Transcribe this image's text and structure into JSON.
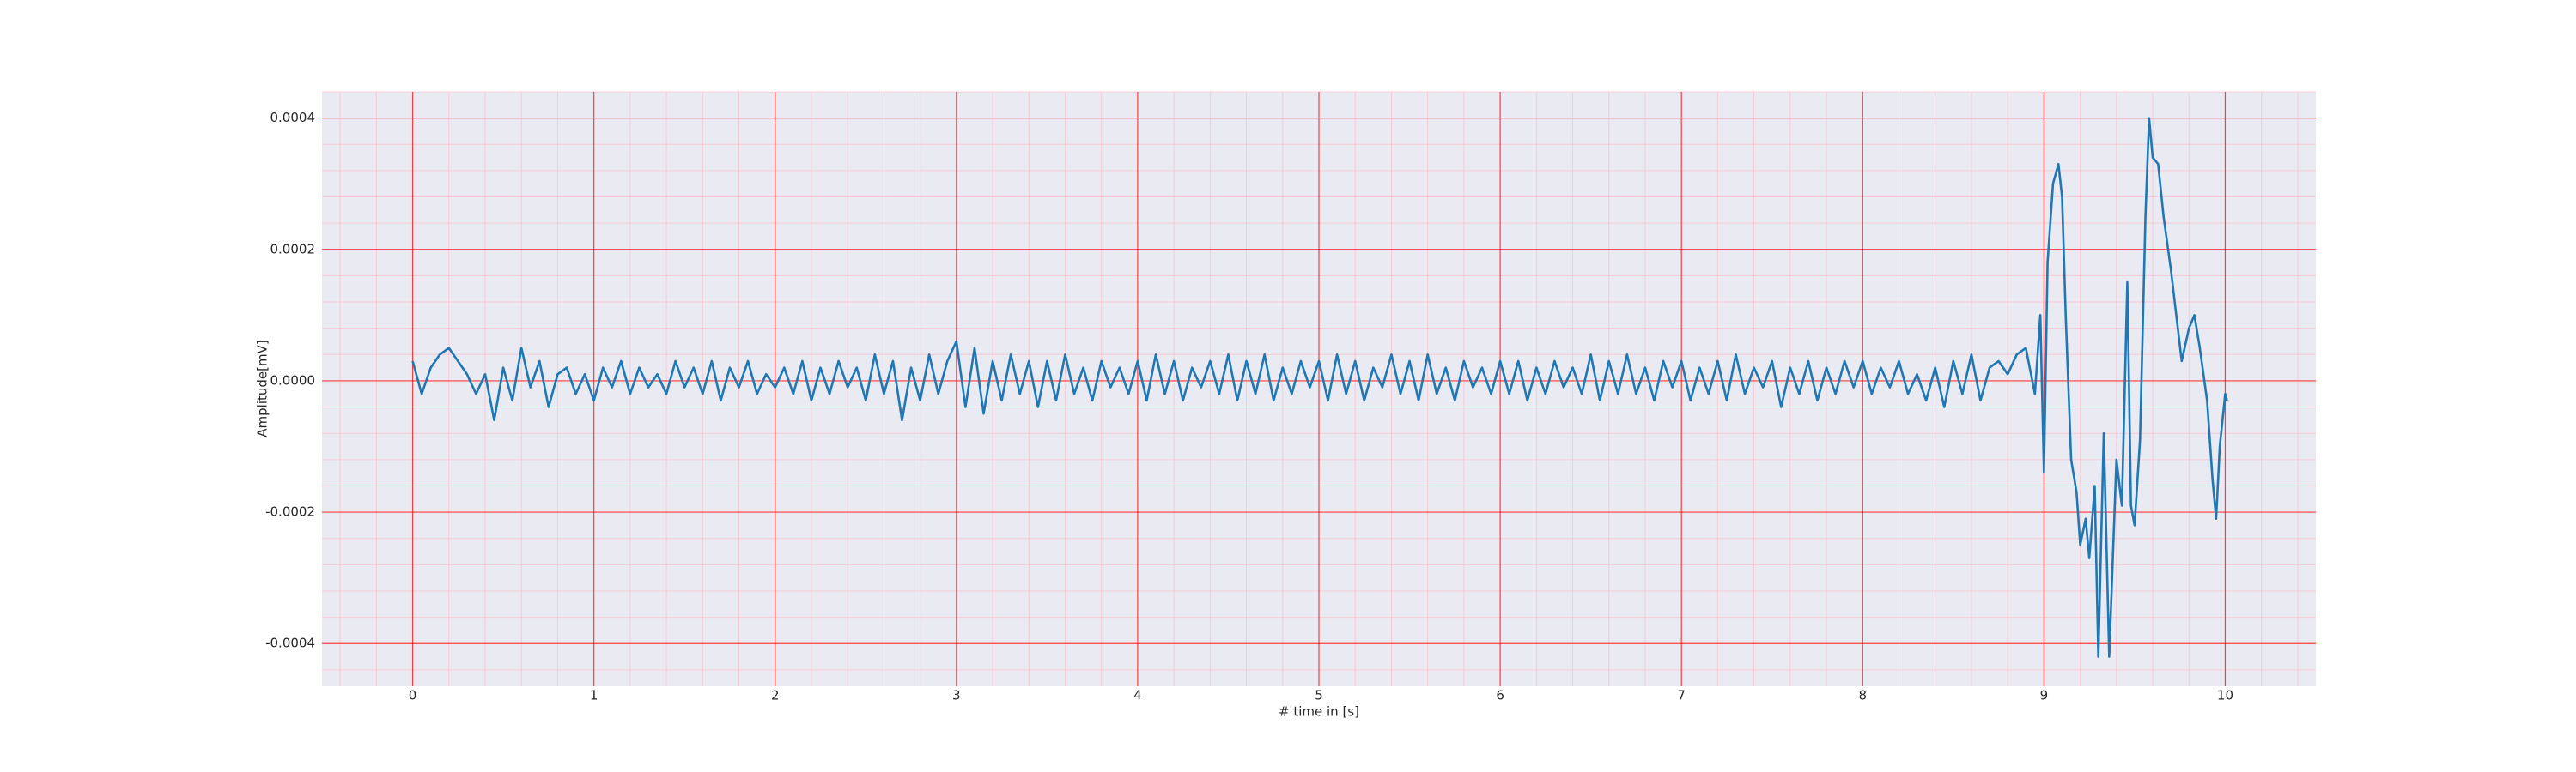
{
  "chart_data": {
    "type": "line",
    "xlabel": "# time in [s]",
    "ylabel": "Amplitude[mV]",
    "xlim": [
      -0.5,
      10.5
    ],
    "xticks": [
      0,
      1,
      2,
      3,
      4,
      5,
      6,
      7,
      8,
      9,
      10
    ],
    "ylim": [
      -0.000465,
      0.00044
    ],
    "yticks": [
      -0.0004,
      -0.0002,
      {
        "value": 0,
        "label": "0.0000"
      },
      0.0002,
      0.0004
    ],
    "grid": true,
    "minor_grid": true,
    "background": "#eaeaf2",
    "grid_color": "#ff0000",
    "minor_grid_color": "#ffb6c1",
    "x": [
      0,
      0.05,
      0.1,
      0.15,
      0.2,
      0.25,
      0.3,
      0.35,
      0.4,
      0.45,
      0.5,
      0.55,
      0.6,
      0.65,
      0.7,
      0.75,
      0.8,
      0.85,
      0.9,
      0.95,
      1,
      1.05,
      1.1,
      1.15,
      1.2,
      1.25,
      1.3,
      1.35,
      1.4,
      1.45,
      1.5,
      1.55,
      1.6,
      1.65,
      1.7,
      1.75,
      1.8,
      1.85,
      1.9,
      1.95,
      2,
      2.05,
      2.1,
      2.15,
      2.2,
      2.25,
      2.3,
      2.35,
      2.4,
      2.45,
      2.5,
      2.55,
      2.6,
      2.65,
      2.7,
      2.75,
      2.8,
      2.85,
      2.9,
      2.95,
      3,
      3.05,
      3.1,
      3.15,
      3.2,
      3.25,
      3.3,
      3.35,
      3.4,
      3.45,
      3.5,
      3.55,
      3.6,
      3.65,
      3.7,
      3.75,
      3.8,
      3.85,
      3.9,
      3.95,
      4,
      4.05,
      4.1,
      4.15,
      4.2,
      4.25,
      4.3,
      4.35,
      4.4,
      4.45,
      4.5,
      4.55,
      4.6,
      4.65,
      4.7,
      4.75,
      4.8,
      4.85,
      4.9,
      4.95,
      5,
      5.05,
      5.1,
      5.15,
      5.2,
      5.25,
      5.3,
      5.35,
      5.4,
      5.45,
      5.5,
      5.55,
      5.6,
      5.65,
      5.7,
      5.75,
      5.8,
      5.85,
      5.9,
      5.95,
      6,
      6.05,
      6.1,
      6.15,
      6.2,
      6.25,
      6.3,
      6.35,
      6.4,
      6.45,
      6.5,
      6.55,
      6.6,
      6.65,
      6.7,
      6.75,
      6.8,
      6.85,
      6.9,
      6.95,
      7,
      7.05,
      7.1,
      7.15,
      7.2,
      7.25,
      7.3,
      7.35,
      7.4,
      7.45,
      7.5,
      7.55,
      7.6,
      7.65,
      7.7,
      7.75,
      7.8,
      7.85,
      7.9,
      7.95,
      8,
      8.05,
      8.1,
      8.15,
      8.2,
      8.25,
      8.3,
      8.35,
      8.4,
      8.45,
      8.5,
      8.55,
      8.6,
      8.65,
      8.7,
      8.75,
      8.8,
      8.85,
      8.9,
      8.95,
      8.98,
      9,
      9.02,
      9.05,
      9.08,
      9.1,
      9.12,
      9.15,
      9.18,
      9.2,
      9.23,
      9.25,
      9.28,
      9.3,
      9.33,
      9.36,
      9.4,
      9.43,
      9.46,
      9.48,
      9.5,
      9.53,
      9.56,
      9.58,
      9.6,
      9.63,
      9.66,
      9.7,
      9.73,
      9.76,
      9.8,
      9.83,
      9.86,
      9.9,
      9.93,
      9.95,
      9.97,
      10,
      10.01
    ],
    "series": [
      {
        "color": "#1f77b4",
        "values": [
          3e-05,
          -2e-05,
          2e-05,
          4e-05,
          5e-05,
          3e-05,
          1e-05,
          -2e-05,
          1e-05,
          -6e-05,
          2e-05,
          -3e-05,
          5e-05,
          -1e-05,
          3e-05,
          -4e-05,
          1e-05,
          2e-05,
          -2e-05,
          1e-05,
          -3e-05,
          2e-05,
          -1e-05,
          3e-05,
          -2e-05,
          2e-05,
          -1e-05,
          1e-05,
          -2e-05,
          3e-05,
          -1e-05,
          2e-05,
          -2e-05,
          3e-05,
          -3e-05,
          2e-05,
          -1e-05,
          3e-05,
          -2e-05,
          1e-05,
          -1e-05,
          2e-05,
          -2e-05,
          3e-05,
          -3e-05,
          2e-05,
          -2e-05,
          3e-05,
          -1e-05,
          2e-05,
          -3e-05,
          4e-05,
          -2e-05,
          3e-05,
          -6e-05,
          2e-05,
          -3e-05,
          4e-05,
          -2e-05,
          3e-05,
          6e-05,
          -4e-05,
          5e-05,
          -5e-05,
          3e-05,
          -3e-05,
          4e-05,
          -2e-05,
          3e-05,
          -4e-05,
          3e-05,
          -3e-05,
          4e-05,
          -2e-05,
          2e-05,
          -3e-05,
          3e-05,
          -1e-05,
          2e-05,
          -2e-05,
          3e-05,
          -3e-05,
          4e-05,
          -2e-05,
          3e-05,
          -3e-05,
          2e-05,
          -1e-05,
          3e-05,
          -2e-05,
          4e-05,
          -3e-05,
          3e-05,
          -2e-05,
          4e-05,
          -3e-05,
          2e-05,
          -2e-05,
          3e-05,
          -1e-05,
          3e-05,
          -3e-05,
          4e-05,
          -2e-05,
          3e-05,
          -3e-05,
          2e-05,
          -1e-05,
          4e-05,
          -2e-05,
          3e-05,
          -3e-05,
          4e-05,
          -2e-05,
          2e-05,
          -3e-05,
          3e-05,
          -1e-05,
          2e-05,
          -2e-05,
          3e-05,
          -2e-05,
          3e-05,
          -3e-05,
          2e-05,
          -2e-05,
          3e-05,
          -1e-05,
          2e-05,
          -2e-05,
          4e-05,
          -3e-05,
          3e-05,
          -2e-05,
          4e-05,
          -2e-05,
          2e-05,
          -3e-05,
          3e-05,
          -1e-05,
          3e-05,
          -3e-05,
          2e-05,
          -2e-05,
          3e-05,
          -3e-05,
          4e-05,
          -2e-05,
          2e-05,
          -1e-05,
          3e-05,
          -4e-05,
          2e-05,
          -2e-05,
          3e-05,
          -3e-05,
          2e-05,
          -2e-05,
          3e-05,
          -1e-05,
          3e-05,
          -2e-05,
          2e-05,
          -1e-05,
          3e-05,
          -2e-05,
          1e-05,
          -3e-05,
          2e-05,
          -4e-05,
          3e-05,
          -2e-05,
          4e-05,
          -3e-05,
          2e-05,
          3e-05,
          1e-05,
          4e-05,
          5e-05,
          -2e-05,
          0.0001,
          -0.00014,
          0.00018,
          0.0003,
          0.00033,
          0.00028,
          0.0001,
          -0.00012,
          -0.00017,
          -0.00025,
          -0.00021,
          -0.00027,
          -0.00016,
          -0.00042,
          -8e-05,
          -0.00042,
          -0.00012,
          -0.00019,
          0.00015,
          -0.00019,
          -0.00022,
          -9e-05,
          0.00025,
          0.0004,
          0.00034,
          0.00033,
          0.00025,
          0.00017,
          0.0001,
          3e-05,
          8e-05,
          0.0001,
          5e-05,
          -3e-05,
          -0.00015,
          -0.00021,
          -0.0001,
          -2e-05,
          -3e-05
        ]
      }
    ]
  }
}
